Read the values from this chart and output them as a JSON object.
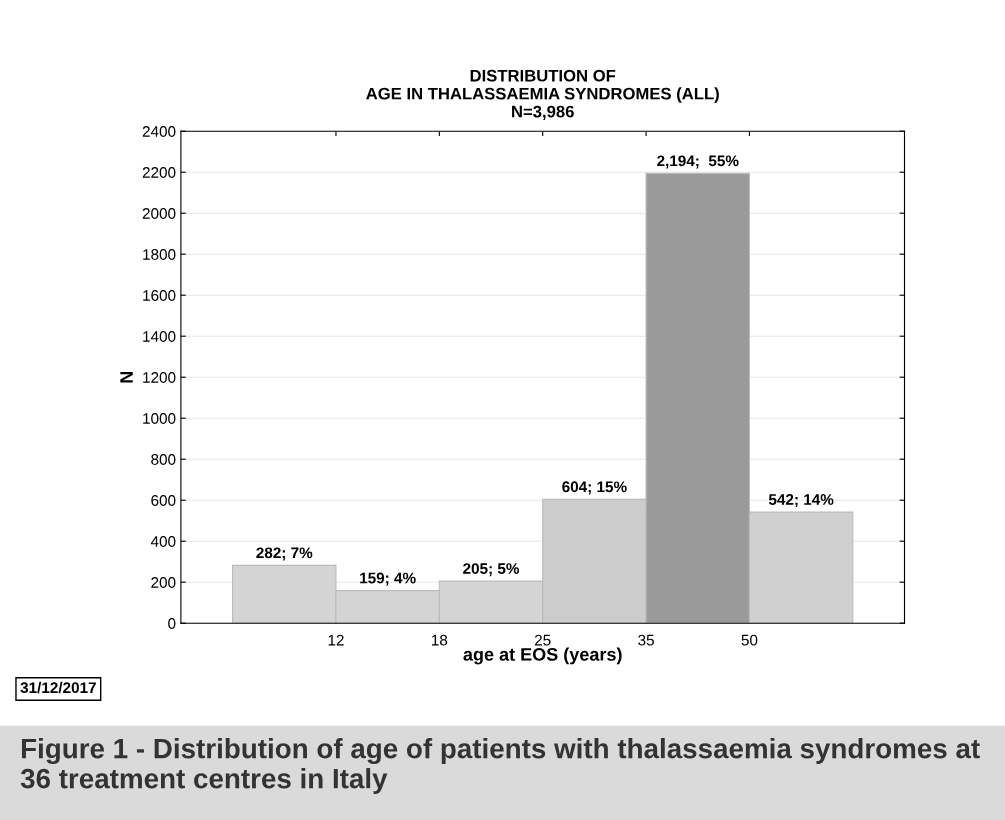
{
  "chart_data": {
    "type": "bar",
    "title": "DISTRIBUTION OF\nAGE IN THALASSAEMIA SYNDROMES (ALL)\nN=3,986",
    "xlabel": "age at EOS (years)",
    "ylabel": "N",
    "categories": [
      null,
      null,
      null,
      null,
      null,
      null
    ],
    "values": [
      282,
      159,
      205,
      604,
      2194,
      542
    ],
    "colors": [
      "#d4d4d4",
      "#d4d4d4",
      "#d4d4d4",
      "#cccccc",
      "#9a9a9a",
      "#d0d0d0"
    ],
    "value_labels": [
      "282; 7%",
      "159; 4%",
      "205; 5%",
      "604; 15%",
      "2,194;  55%",
      "542; 14%"
    ],
    "ylim": [
      0,
      2400
    ],
    "yticks": [
      0,
      200,
      400,
      600,
      800,
      1000,
      1200,
      1400,
      1600,
      1800,
      2000,
      2200,
      2400
    ],
    "grid": "y",
    "annotations": [
      "12",
      "18",
      "25",
      "35",
      "50",
      "31/12/2017",
      "Figure 1 - Distribution of age of patients with thalassaemia syndromes at 36 treatment centres in Italy"
    ]
  }
}
